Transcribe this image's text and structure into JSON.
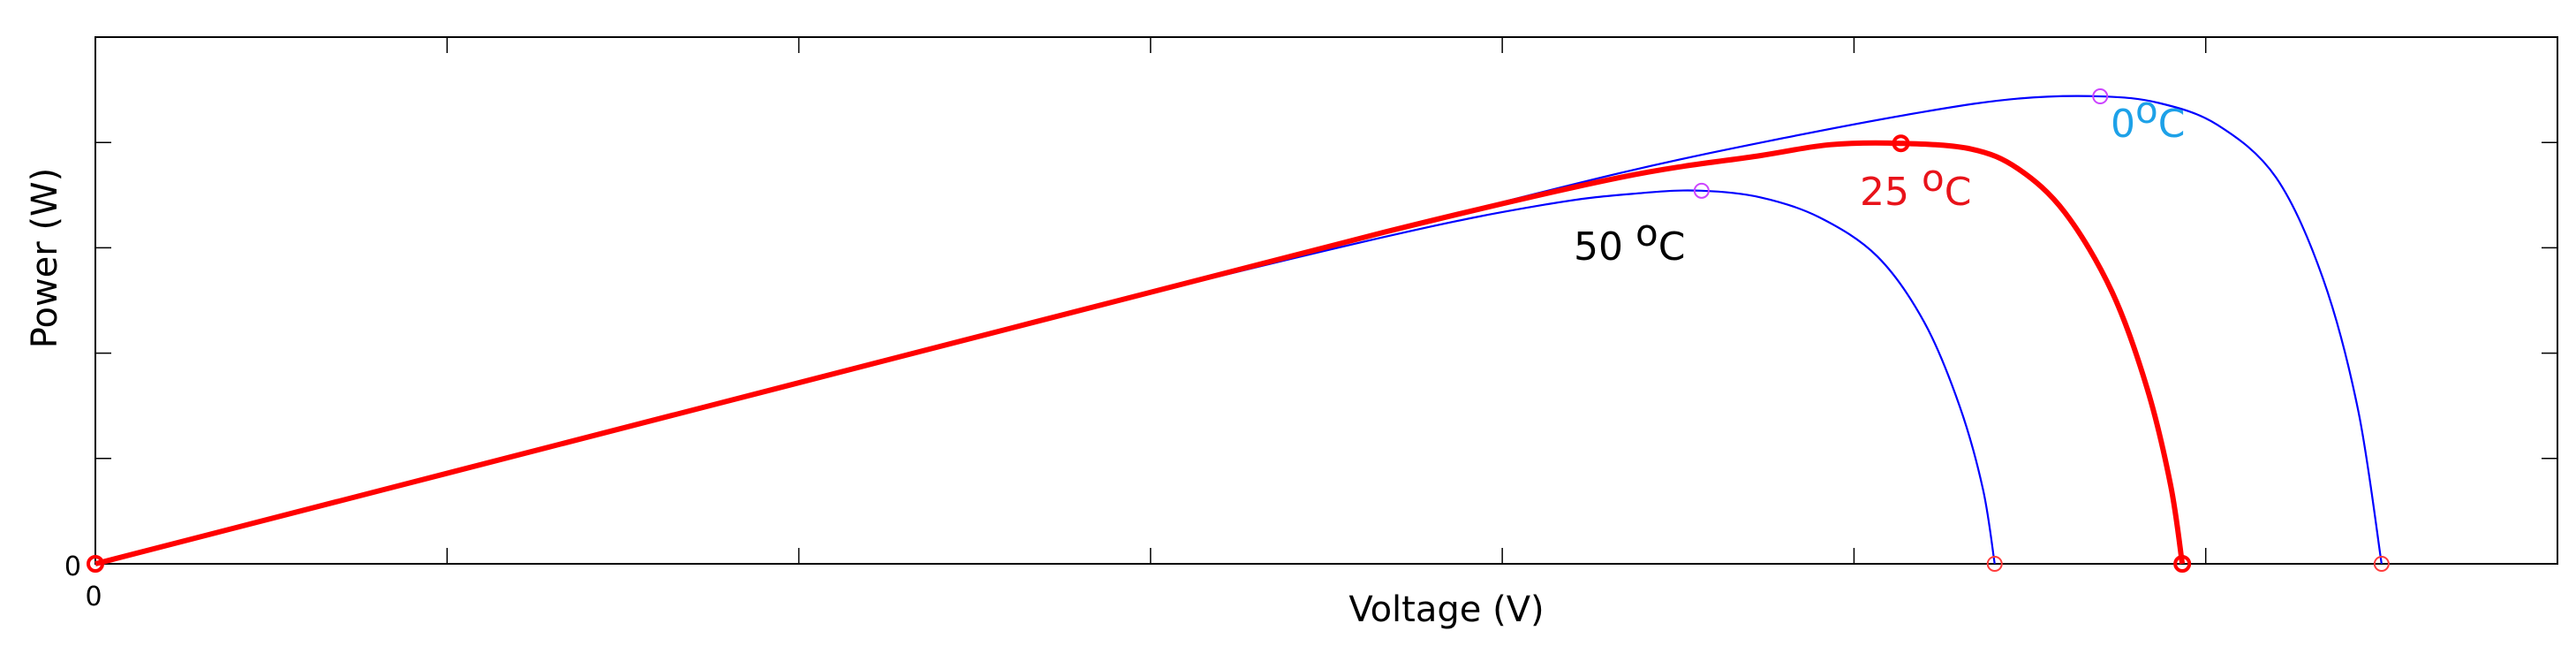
{
  "chart_data": {
    "type": "line",
    "title": "",
    "xlabel": "Voltage (V)",
    "ylabel": "Power (W)",
    "x_tick_labels": [
      "0"
    ],
    "y_tick_labels": [
      "0"
    ],
    "xlim": [
      0,
      1.05
    ],
    "ylim": [
      0,
      1.2
    ],
    "grid": false,
    "series": [
      {
        "label": "0 °C",
        "color": "#0000ff",
        "label_color": "#1da1e8",
        "marker_color": "#cc44ff",
        "x": [
          0,
          0.2,
          0.4,
          0.55,
          0.65,
          0.72,
          0.78,
          0.82,
          0.855,
          0.88,
          0.905,
          0.93,
          0.95,
          0.965,
          0.975
        ],
        "y": [
          0,
          0.275,
          0.55,
          0.756,
          0.89,
          0.97,
          1.03,
          1.06,
          1.065,
          1.05,
          1.0,
          0.88,
          0.65,
          0.35,
          0
        ],
        "mpp": [
          0.855,
          1.065
        ],
        "voc": [
          0.975,
          0
        ]
      },
      {
        "label": "25 °C",
        "color": "#ff0000",
        "label_color": "#e8131a",
        "marker_color": "#ff0000",
        "x": [
          0,
          0.2,
          0.4,
          0.55,
          0.65,
          0.71,
          0.74,
          0.77,
          0.8,
          0.82,
          0.84,
          0.86,
          0.875,
          0.885,
          0.89
        ],
        "y": [
          0,
          0.275,
          0.55,
          0.756,
          0.88,
          0.93,
          0.955,
          0.958,
          0.945,
          0.9,
          0.8,
          0.62,
          0.4,
          0.18,
          0
        ],
        "mpp": [
          0.77,
          0.958
        ],
        "voc": [
          0.89,
          0
        ]
      },
      {
        "label": "50 °C",
        "color": "#0000ff",
        "label_color": "#000000",
        "marker_color": "#cc44ff",
        "x": [
          0,
          0.2,
          0.4,
          0.55,
          0.62,
          0.66,
          0.685,
          0.71,
          0.735,
          0.76,
          0.78,
          0.795,
          0.805,
          0.81
        ],
        "y": [
          0,
          0.275,
          0.55,
          0.745,
          0.82,
          0.845,
          0.85,
          0.835,
          0.79,
          0.7,
          0.55,
          0.36,
          0.17,
          0
        ],
        "mpp": [
          0.685,
          0.85
        ],
        "voc": [
          0.81,
          0
        ]
      }
    ]
  }
}
